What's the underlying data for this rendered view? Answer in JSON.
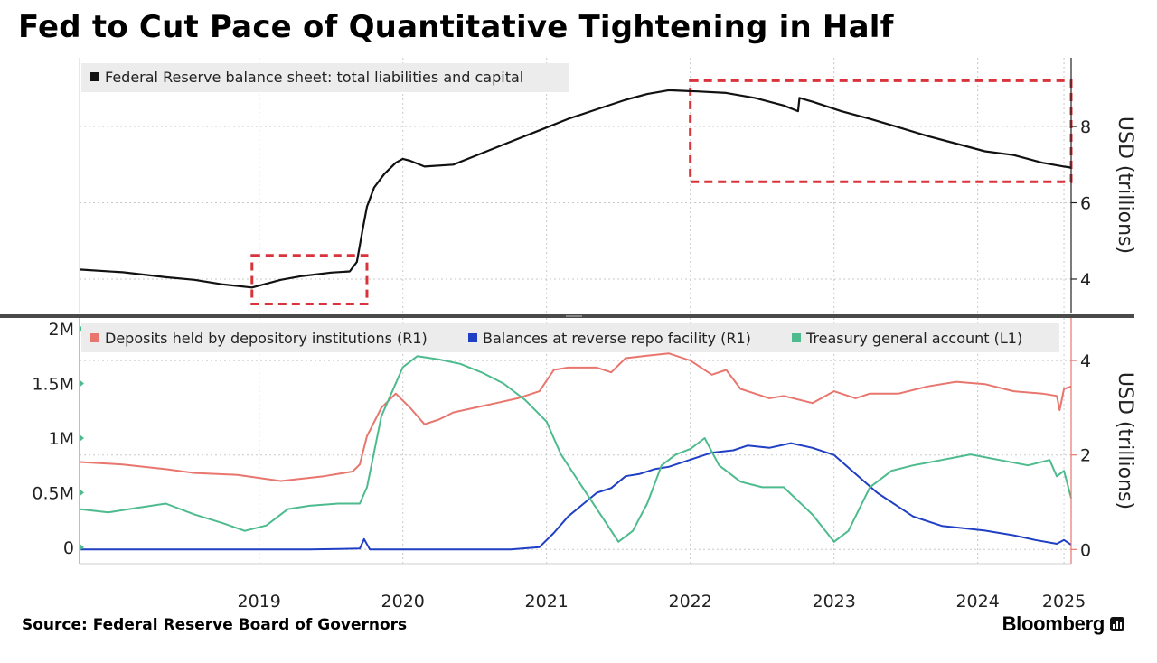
{
  "title": "Fed to Cut Pace of Quantitative Tightening in Half",
  "source": "Source: Federal Reserve Board of Governors",
  "brand": "Bloomberg",
  "brand_icon": "bloomberg-terminal-icon",
  "colors": {
    "balance_sheet": "#111111",
    "deposits": "#e8766e",
    "reverse_repo": "#1f3fc4",
    "tga": "#4dbb8e",
    "highlight_box": "#d9343c",
    "grid": "#c8c8c8",
    "divider": "#4a4a4a"
  },
  "chart_data": [
    {
      "type": "line",
      "panel": "top",
      "ylabel": "USD (trillions)",
      "y_axis_side": "right",
      "ylim": [
        3.1,
        9.8
      ],
      "yticks": [
        4,
        6,
        8
      ],
      "xlim": [
        2018.2,
        2025.1
      ],
      "grid": true,
      "legend_position": "top-left",
      "series": [
        {
          "name": "Federal Reserve balance sheet: total liabilities and capital",
          "color_key": "balance_sheet",
          "points": [
            [
              2018.2,
              4.25
            ],
            [
              2018.5,
              4.18
            ],
            [
              2018.8,
              4.05
            ],
            [
              2019.0,
              3.98
            ],
            [
              2019.2,
              3.86
            ],
            [
              2019.4,
              3.78
            ],
            [
              2019.5,
              3.88
            ],
            [
              2019.6,
              3.98
            ],
            [
              2019.75,
              4.08
            ],
            [
              2019.95,
              4.17
            ],
            [
              2020.08,
              4.2
            ],
            [
              2020.13,
              4.45
            ],
            [
              2020.17,
              5.3
            ],
            [
              2020.2,
              5.9
            ],
            [
              2020.25,
              6.4
            ],
            [
              2020.32,
              6.75
            ],
            [
              2020.4,
              7.05
            ],
            [
              2020.45,
              7.15
            ],
            [
              2020.5,
              7.1
            ],
            [
              2020.6,
              6.95
            ],
            [
              2020.8,
              7.0
            ],
            [
              2021.0,
              7.3
            ],
            [
              2021.2,
              7.6
            ],
            [
              2021.4,
              7.9
            ],
            [
              2021.6,
              8.2
            ],
            [
              2021.8,
              8.45
            ],
            [
              2022.0,
              8.7
            ],
            [
              2022.15,
              8.85
            ],
            [
              2022.3,
              8.95
            ],
            [
              2022.5,
              8.92
            ],
            [
              2022.7,
              8.88
            ],
            [
              2022.9,
              8.75
            ],
            [
              2023.1,
              8.55
            ],
            [
              2023.2,
              8.4
            ],
            [
              2023.21,
              8.75
            ],
            [
              2023.3,
              8.65
            ],
            [
              2023.5,
              8.4
            ],
            [
              2023.7,
              8.2
            ],
            [
              2023.9,
              7.98
            ],
            [
              2024.1,
              7.75
            ],
            [
              2024.3,
              7.55
            ],
            [
              2024.5,
              7.35
            ],
            [
              2024.7,
              7.25
            ],
            [
              2024.9,
              7.05
            ],
            [
              2025.05,
              6.95
            ],
            [
              2025.1,
              6.92
            ]
          ]
        }
      ],
      "highlight_boxes": [
        {
          "x": [
            2019.4,
            2020.2
          ],
          "y": [
            3.35,
            4.62
          ]
        },
        {
          "x": [
            2022.45,
            2025.1
          ],
          "y": [
            6.55,
            9.2
          ]
        }
      ]
    },
    {
      "type": "line",
      "panel": "bottom",
      "xlim": [
        2018.2,
        2025.1
      ],
      "xticks": [
        "2019",
        "2020",
        "2021",
        "2022",
        "2023",
        "2024",
        "2025"
      ],
      "xtick_values": [
        2019.45,
        2020.45,
        2021.45,
        2022.45,
        2023.45,
        2024.45,
        2025.05
      ],
      "left_axis": {
        "ylim": [
          -0.15,
          2.1
        ],
        "ticks": [
          "0",
          "0.5M",
          "1M",
          "1.5M",
          "2M"
        ],
        "tick_values": [
          0,
          0.5,
          1.0,
          1.5,
          2.0
        ]
      },
      "right_axis": {
        "label": "USD (trillions)",
        "ylim": [
          -0.3,
          4.9
        ],
        "ticks": [
          "0",
          "2",
          "4"
        ],
        "tick_values": [
          0,
          2,
          4
        ]
      },
      "grid": true,
      "legend_position": "top",
      "series": [
        {
          "name": "Deposits held by depository institutions (R1)",
          "axis": "right",
          "color_key": "deposits",
          "points": [
            [
              2018.2,
              1.85
            ],
            [
              2018.5,
              1.8
            ],
            [
              2018.8,
              1.7
            ],
            [
              2019.0,
              1.62
            ],
            [
              2019.3,
              1.58
            ],
            [
              2019.6,
              1.45
            ],
            [
              2019.9,
              1.55
            ],
            [
              2020.1,
              1.65
            ],
            [
              2020.15,
              1.8
            ],
            [
              2020.2,
              2.4
            ],
            [
              2020.3,
              3.0
            ],
            [
              2020.4,
              3.3
            ],
            [
              2020.5,
              3.0
            ],
            [
              2020.6,
              2.65
            ],
            [
              2020.7,
              2.75
            ],
            [
              2020.8,
              2.9
            ],
            [
              2020.95,
              3.0
            ],
            [
              2021.1,
              3.1
            ],
            [
              2021.25,
              3.2
            ],
            [
              2021.4,
              3.35
            ],
            [
              2021.5,
              3.8
            ],
            [
              2021.6,
              3.85
            ],
            [
              2021.8,
              3.85
            ],
            [
              2021.9,
              3.75
            ],
            [
              2022.0,
              4.05
            ],
            [
              2022.15,
              4.1
            ],
            [
              2022.3,
              4.15
            ],
            [
              2022.45,
              4.0
            ],
            [
              2022.6,
              3.7
            ],
            [
              2022.7,
              3.8
            ],
            [
              2022.8,
              3.4
            ],
            [
              2022.9,
              3.3
            ],
            [
              2023.0,
              3.2
            ],
            [
              2023.1,
              3.25
            ],
            [
              2023.3,
              3.1
            ],
            [
              2023.45,
              3.35
            ],
            [
              2023.6,
              3.2
            ],
            [
              2023.7,
              3.3
            ],
            [
              2023.9,
              3.3
            ],
            [
              2024.1,
              3.45
            ],
            [
              2024.3,
              3.55
            ],
            [
              2024.5,
              3.5
            ],
            [
              2024.7,
              3.35
            ],
            [
              2024.9,
              3.3
            ],
            [
              2025.0,
              3.25
            ],
            [
              2025.02,
              2.95
            ],
            [
              2025.05,
              3.4
            ],
            [
              2025.1,
              3.45
            ]
          ]
        },
        {
          "name": "Balances at reverse repo facility (R1)",
          "axis": "right",
          "color_key": "reverse_repo",
          "points": [
            [
              2018.2,
              0.0
            ],
            [
              2019.8,
              0.0
            ],
            [
              2020.15,
              0.02
            ],
            [
              2020.18,
              0.22
            ],
            [
              2020.22,
              0.0
            ],
            [
              2021.2,
              0.0
            ],
            [
              2021.4,
              0.05
            ],
            [
              2021.5,
              0.35
            ],
            [
              2021.6,
              0.7
            ],
            [
              2021.7,
              0.95
            ],
            [
              2021.8,
              1.2
            ],
            [
              2021.9,
              1.3
            ],
            [
              2022.0,
              1.55
            ],
            [
              2022.1,
              1.6
            ],
            [
              2022.2,
              1.7
            ],
            [
              2022.3,
              1.75
            ],
            [
              2022.45,
              1.9
            ],
            [
              2022.6,
              2.05
            ],
            [
              2022.75,
              2.1
            ],
            [
              2022.85,
              2.2
            ],
            [
              2023.0,
              2.15
            ],
            [
              2023.15,
              2.25
            ],
            [
              2023.3,
              2.15
            ],
            [
              2023.45,
              2.0
            ],
            [
              2023.6,
              1.6
            ],
            [
              2023.75,
              1.2
            ],
            [
              2023.9,
              0.9
            ],
            [
              2024.0,
              0.7
            ],
            [
              2024.2,
              0.5
            ],
            [
              2024.35,
              0.45
            ],
            [
              2024.5,
              0.4
            ],
            [
              2024.7,
              0.3
            ],
            [
              2024.85,
              0.2
            ],
            [
              2025.0,
              0.12
            ],
            [
              2025.05,
              0.2
            ],
            [
              2025.1,
              0.1
            ]
          ]
        },
        {
          "name": "Treasury general account  (L1)",
          "axis": "left",
          "color_key": "tga",
          "points": [
            [
              2018.2,
              0.35
            ],
            [
              2018.4,
              0.32
            ],
            [
              2018.6,
              0.36
            ],
            [
              2018.8,
              0.4
            ],
            [
              2019.0,
              0.3
            ],
            [
              2019.2,
              0.22
            ],
            [
              2019.35,
              0.15
            ],
            [
              2019.5,
              0.2
            ],
            [
              2019.65,
              0.35
            ],
            [
              2019.8,
              0.38
            ],
            [
              2020.0,
              0.4
            ],
            [
              2020.15,
              0.4
            ],
            [
              2020.2,
              0.55
            ],
            [
              2020.3,
              1.2
            ],
            [
              2020.45,
              1.65
            ],
            [
              2020.55,
              1.75
            ],
            [
              2020.7,
              1.72
            ],
            [
              2020.85,
              1.68
            ],
            [
              2021.0,
              1.6
            ],
            [
              2021.15,
              1.5
            ],
            [
              2021.3,
              1.35
            ],
            [
              2021.45,
              1.15
            ],
            [
              2021.55,
              0.85
            ],
            [
              2021.7,
              0.55
            ],
            [
              2021.85,
              0.25
            ],
            [
              2021.95,
              0.05
            ],
            [
              2022.05,
              0.15
            ],
            [
              2022.15,
              0.4
            ],
            [
              2022.25,
              0.75
            ],
            [
              2022.35,
              0.85
            ],
            [
              2022.45,
              0.9
            ],
            [
              2022.55,
              1.0
            ],
            [
              2022.65,
              0.75
            ],
            [
              2022.8,
              0.6
            ],
            [
              2022.95,
              0.55
            ],
            [
              2023.1,
              0.55
            ],
            [
              2023.3,
              0.3
            ],
            [
              2023.45,
              0.05
            ],
            [
              2023.55,
              0.15
            ],
            [
              2023.7,
              0.55
            ],
            [
              2023.85,
              0.7
            ],
            [
              2024.0,
              0.75
            ],
            [
              2024.2,
              0.8
            ],
            [
              2024.4,
              0.85
            ],
            [
              2024.6,
              0.8
            ],
            [
              2024.8,
              0.75
            ],
            [
              2024.95,
              0.8
            ],
            [
              2025.0,
              0.65
            ],
            [
              2025.05,
              0.7
            ],
            [
              2025.1,
              0.45
            ]
          ]
        }
      ]
    }
  ]
}
